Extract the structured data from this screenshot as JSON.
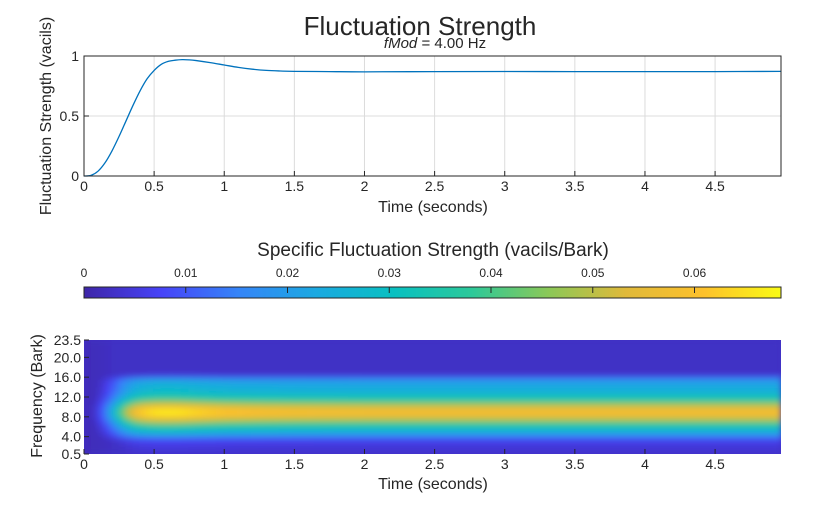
{
  "figure": {
    "title": "Fluctuation Strength",
    "subtitle_var": "fMod",
    "subtitle_rest": " = 4.00 Hz"
  },
  "colors": {
    "line": "#0072bd",
    "grid": "#dcdcdc",
    "colormap": [
      "#3e26a8",
      "#4743f8",
      "#3585f8",
      "#1ba9e1",
      "#08c0c1",
      "#2cc99a",
      "#8bc857",
      "#e0b93a",
      "#fdc12c",
      "#f9fb15"
    ]
  },
  "chart_data": [
    {
      "type": "line",
      "title": "",
      "xlabel": "Time (seconds)",
      "ylabel": "Fluctuation Strength (vacils)",
      "xlim": [
        0,
        4.97
      ],
      "ylim": [
        0,
        1
      ],
      "xticks": [
        0,
        0.5,
        1,
        1.5,
        2,
        2.5,
        3,
        3.5,
        4,
        4.5
      ],
      "xtick_labels": [
        "0",
        "0.5",
        "1",
        "1.5",
        "2",
        "2.5",
        "3",
        "3.5",
        "4",
        "4.5"
      ],
      "yticks": [
        0,
        0.5,
        1
      ],
      "ytick_labels": [
        "0",
        "0.5",
        "1"
      ],
      "grid": true,
      "series": [
        {
          "x": [
            0,
            0.05,
            0.1,
            0.15,
            0.2,
            0.25,
            0.3,
            0.35,
            0.4,
            0.45,
            0.5,
            0.55,
            0.6,
            0.65,
            0.7,
            0.75,
            0.8,
            0.9,
            1.0,
            1.1,
            1.2,
            1.3,
            1.4,
            1.5,
            1.75,
            2.0,
            2.5,
            3.0,
            3.5,
            4.0,
            4.5,
            4.97
          ],
          "y": [
            0,
            0.005,
            0.04,
            0.11,
            0.21,
            0.33,
            0.46,
            0.59,
            0.71,
            0.81,
            0.88,
            0.93,
            0.955,
            0.965,
            0.97,
            0.968,
            0.962,
            0.945,
            0.925,
            0.905,
            0.89,
            0.88,
            0.875,
            0.872,
            0.87,
            0.868,
            0.87,
            0.871,
            0.87,
            0.87,
            0.87,
            0.872
          ]
        }
      ]
    },
    {
      "type": "heatmap",
      "title": "Specific Fluctuation Strength (vacils/Bark)",
      "xlabel": "Time (seconds)",
      "ylabel": "Frequency (Bark)",
      "xlim": [
        0,
        4.97
      ],
      "ylim": [
        0.5,
        23.5
      ],
      "xticks": [
        0,
        0.5,
        1,
        1.5,
        2,
        2.5,
        3,
        3.5,
        4,
        4.5
      ],
      "xtick_labels": [
        "0",
        "0.5",
        "1",
        "1.5",
        "2",
        "2.5",
        "3",
        "3.5",
        "4",
        "4.5"
      ],
      "yticks": [
        0.5,
        4.0,
        8.0,
        12.0,
        16.0,
        20.0,
        23.5
      ],
      "ytick_labels": [
        "0.5",
        "4.0",
        "8.0",
        "12.0",
        "16.0",
        "20.0",
        "23.5"
      ],
      "colorbar": {
        "location": "top",
        "range": [
          0,
          0.0685
        ],
        "ticks": [
          0,
          0.01,
          0.02,
          0.03,
          0.04,
          0.05,
          0.06
        ],
        "tick_labels": [
          "0",
          "0.01",
          "0.02",
          "0.03",
          "0.04",
          "0.05",
          "0.06"
        ]
      },
      "time_bins": [
        0,
        0.05,
        0.1,
        0.15,
        0.2,
        0.25,
        0.3,
        0.35,
        0.4,
        0.5,
        0.6,
        0.7,
        0.8,
        1.0,
        1.25,
        1.5,
        2.0,
        2.5,
        3.0,
        3.5,
        4.0,
        4.5,
        4.97
      ],
      "time_envelope": [
        0,
        0.02,
        0.08,
        0.2,
        0.35,
        0.55,
        0.72,
        0.85,
        0.93,
        0.99,
        1.0,
        0.99,
        0.96,
        0.92,
        0.9,
        0.89,
        0.88,
        0.88,
        0.88,
        0.88,
        0.88,
        0.88,
        0.88
      ],
      "freq_bins": [
        0.5,
        2.0,
        3.5,
        4.5,
        5.5,
        6.5,
        7.5,
        8.5,
        9.5,
        10.5,
        11.5,
        12.5,
        13.5,
        14.5,
        15.5,
        16.5,
        18.0,
        20.0,
        23.5
      ],
      "freq_profile": [
        0.06,
        0.07,
        0.12,
        0.33,
        0.45,
        0.6,
        0.8,
        0.97,
        0.97,
        0.8,
        0.6,
        0.47,
        0.4,
        0.37,
        0.33,
        0.05,
        0.03,
        0.02,
        0.02
      ],
      "peak_value": 0.0685
    }
  ]
}
